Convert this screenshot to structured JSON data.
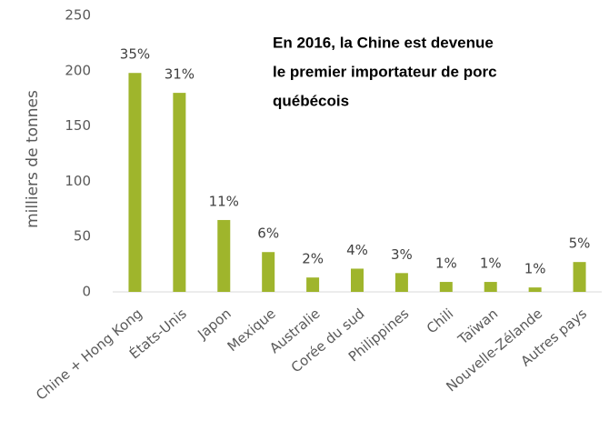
{
  "chart_data": {
    "type": "bar",
    "y_label": "milliers de tonnes",
    "annotation": [
      "En 2016, la Chine est devenue",
      "le premier importateur de porc",
      "québécois"
    ],
    "categories": [
      "Chine + Hong Kong",
      "États-Unis",
      "Japon",
      "Mexique",
      "Australie",
      "Corée du sud",
      "Philippines",
      "Chili",
      "Taïwan",
      "Nouvelle-Zélande",
      "Autres pays"
    ],
    "values": [
      198,
      180,
      65,
      36,
      13,
      21,
      17,
      9,
      9,
      4,
      27
    ],
    "share_labels": [
      "35%",
      "31%",
      "11%",
      "6%",
      "2%",
      "4%",
      "3%",
      "1%",
      "1%",
      "1%",
      "5%"
    ],
    "color": "#9fb52c",
    "ylim": [
      0,
      250
    ],
    "yticks": [
      0,
      50,
      100,
      150,
      200,
      250
    ],
    "grid": false
  }
}
